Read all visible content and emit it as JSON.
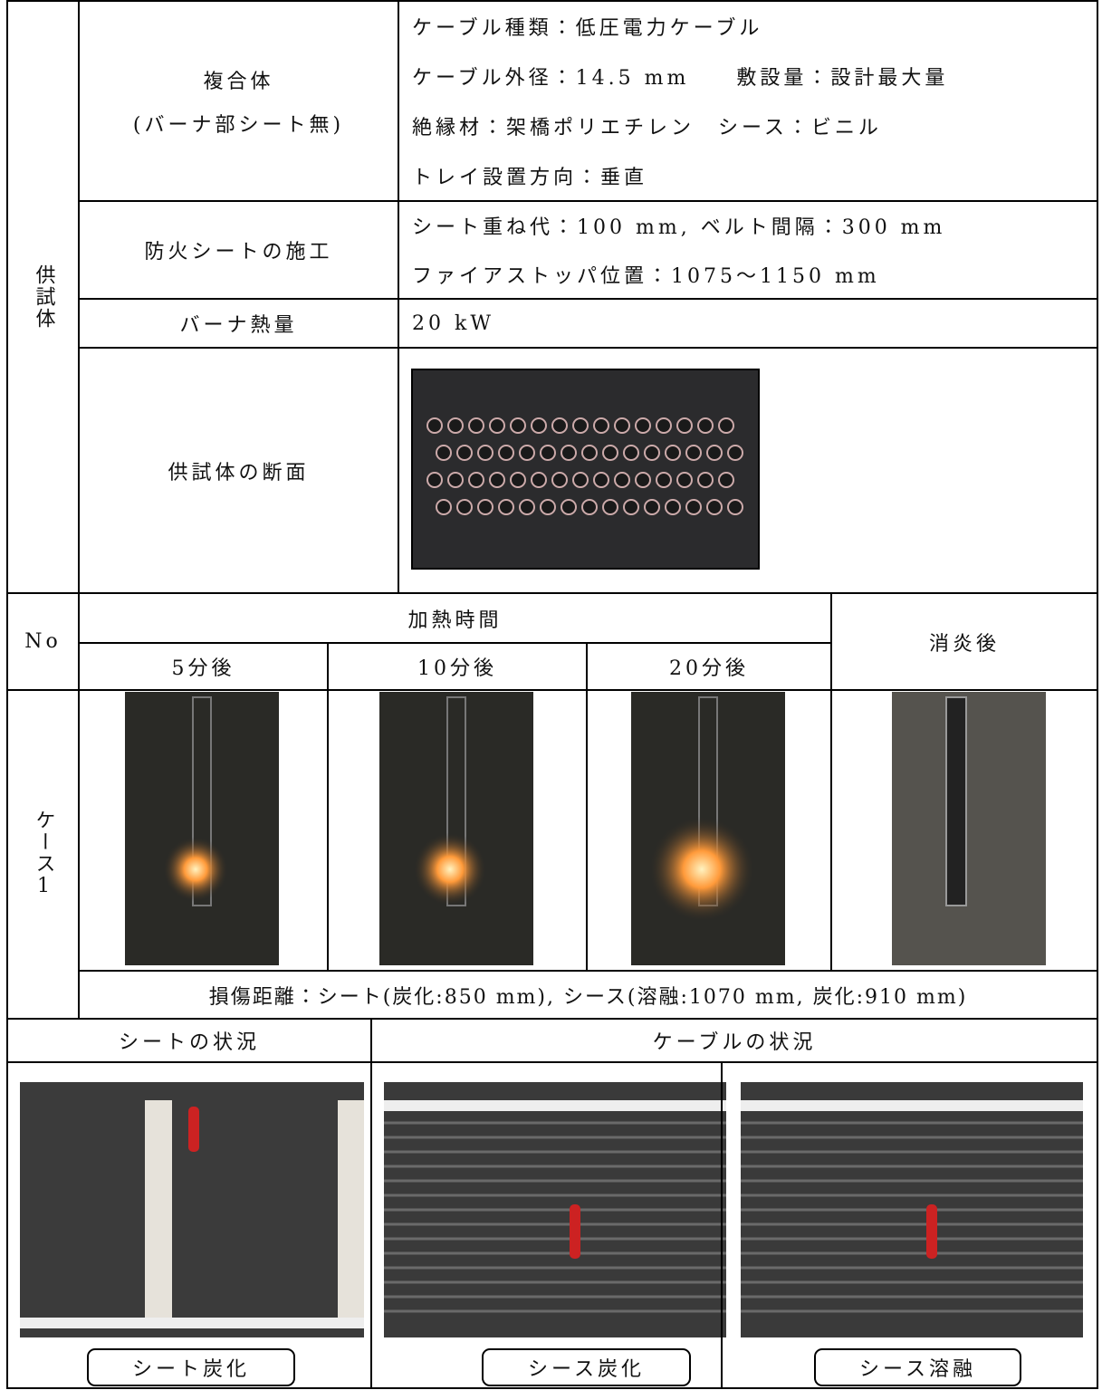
{
  "specimen": {
    "label": "供試体",
    "rows": [
      {
        "item": [
          "複合体",
          "(バーナ部シート無)"
        ],
        "details": [
          "ケーブル種類：低圧電力ケーブル",
          "ケーブル外径：14.5 mm　　敷設量：設計最大量",
          "絶縁材：架橋ポリエチレン　シース：ビニル",
          "トレイ設置方向：垂直"
        ]
      },
      {
        "item": [
          "防火シートの施工"
        ],
        "details": [
          "シート重ね代：100 mm, ベルト間隔：300 mm",
          "ファイアストッパ位置：1075～1150 mm"
        ]
      },
      {
        "item": [
          "バーナ熱量"
        ],
        "details": [
          "20 kW"
        ]
      },
      {
        "item": [
          "供試体の断面"
        ]
      }
    ]
  },
  "heating": {
    "no_label": "No",
    "time_label": "加熱時間",
    "times": [
      "5分後",
      "10分後",
      "20分後"
    ],
    "after_label": "消炎後",
    "case": "ケース1",
    "damage": "損傷距離：シート(炭化:850 mm), シース(溶融:1070 mm, 炭化:910 mm)"
  },
  "condition": {
    "sheet_header": "シートの状況",
    "cable_header": "ケーブルの状況",
    "captions": [
      "シート炭化",
      "シース炭化",
      "シース溶融"
    ]
  }
}
